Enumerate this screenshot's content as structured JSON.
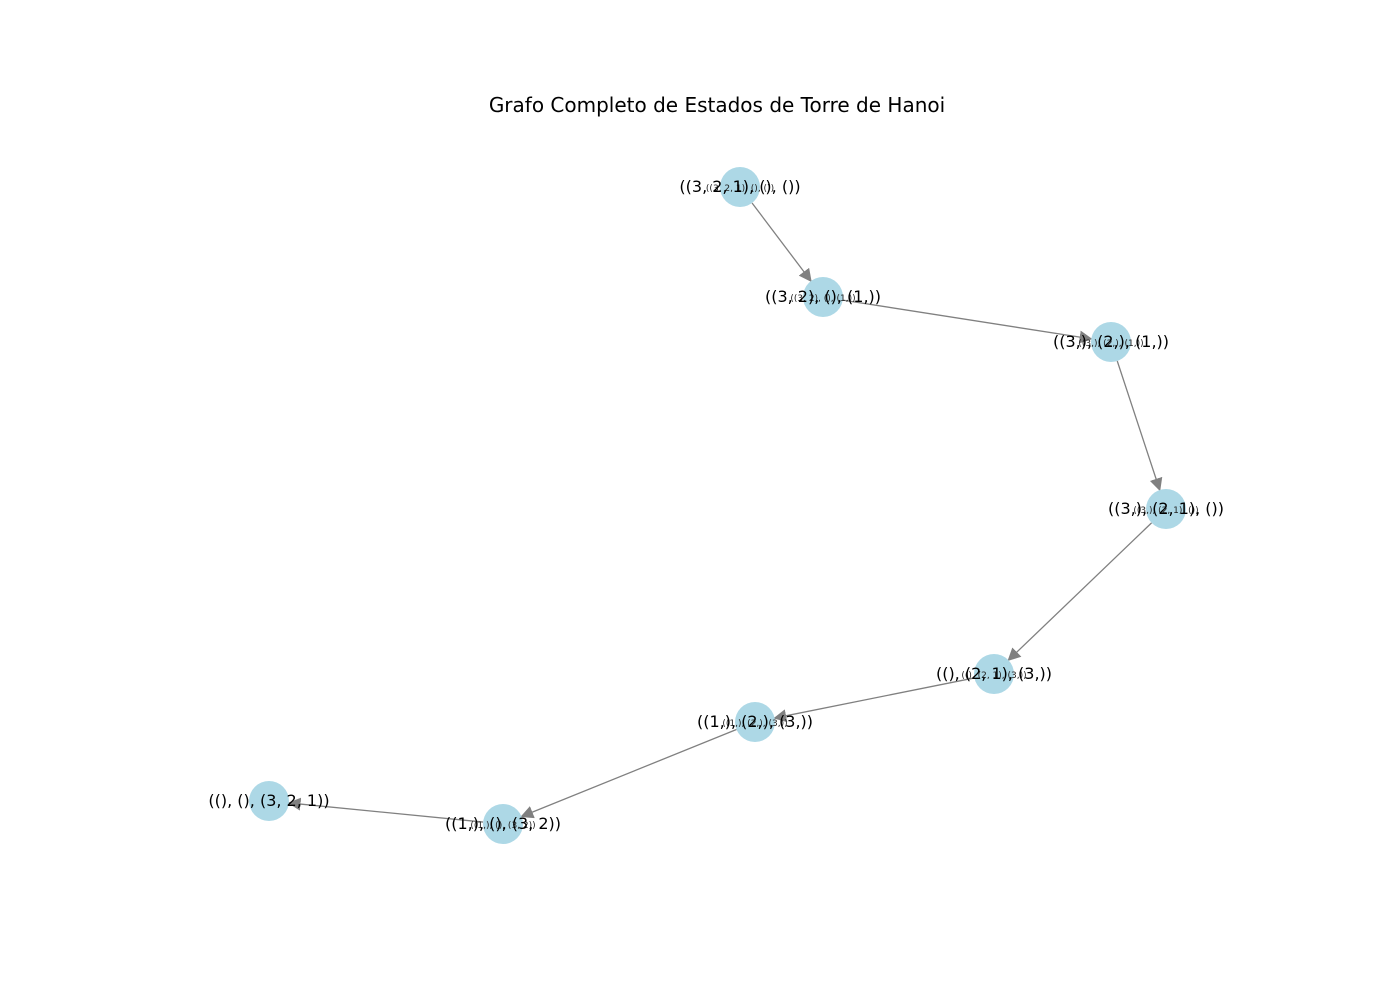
{
  "title": "Grafo Completo de Estados de Torre de Hanoi",
  "colors": {
    "node_fill": "#add8e6",
    "edge": "#808080",
    "text": "#000000"
  },
  "nodes": [
    {
      "id": "n0",
      "label": "((3, 2, 1), (), ())"
    },
    {
      "id": "n1",
      "label": "((3, 2), (), (1,))"
    },
    {
      "id": "n2",
      "label": "((3,), (2,), (1,))"
    },
    {
      "id": "n3",
      "label": "((3,), (2, 1), ())"
    },
    {
      "id": "n4",
      "label": "((), (2, 1), (3,))"
    },
    {
      "id": "n5",
      "label": "((1,), (2,), (3,))"
    },
    {
      "id": "n6",
      "label": "((1,), (), (3, 2))"
    },
    {
      "id": "n7",
      "label": "((), (), (3, 2, 1))"
    }
  ],
  "edges": [
    {
      "from": "n0",
      "to": "n1",
      "label": "((3, 2, 1), (), ())"
    },
    {
      "from": "n1",
      "to": "n2",
      "label": "((3, 2), (), (1,))"
    },
    {
      "from": "n2",
      "to": "n3",
      "label": "((3,), (2,), (1,))"
    },
    {
      "from": "n3",
      "to": "n4",
      "label": "((3,), (2, 1), ())"
    },
    {
      "from": "n4",
      "to": "n5",
      "label": "((), (2, 1), (3,))"
    },
    {
      "from": "n5",
      "to": "n6",
      "label": "((1,), (2,), (3,))"
    },
    {
      "from": "n6",
      "to": "n7",
      "label": "((1,), (), (3, 2))"
    }
  ]
}
